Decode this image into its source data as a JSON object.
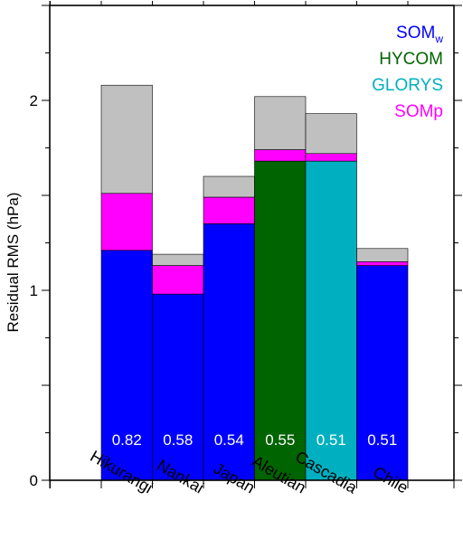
{
  "chart_data": {
    "type": "bar",
    "stacked": true,
    "title": "",
    "ylabel": "Residual RMS (hPa)",
    "xlabel": "",
    "ylim": [
      0,
      2.5
    ],
    "yticks": [
      0,
      1,
      2
    ],
    "grid": false,
    "legend_placement": "top-right",
    "categories": [
      "Hikurangi",
      "Nankai",
      "Japan",
      "Aleutian",
      "Cascadia",
      "Chile"
    ],
    "base_model": [
      "SOMw",
      "SOMw",
      "SOMw",
      "HYCOM",
      "GLORYS",
      "SOMw"
    ],
    "base_values": [
      1.21,
      0.98,
      1.35,
      1.68,
      1.68,
      1.13
    ],
    "somp_top": [
      1.51,
      1.13,
      1.49,
      1.74,
      1.72,
      1.15
    ],
    "total_values": [
      2.08,
      1.19,
      1.6,
      2.02,
      1.93,
      1.22
    ],
    "bar_labels": [
      "0.82",
      "0.58",
      "0.54",
      "0.55",
      "0.51",
      "0.51"
    ],
    "legend": [
      {
        "key": "SOMw",
        "main": "SOM",
        "sub": "w",
        "color": "#0000ff"
      },
      {
        "key": "HYCOM",
        "main": "HYCOM",
        "sub": "",
        "color": "#006400"
      },
      {
        "key": "GLORYS",
        "main": "GLORYS",
        "sub": "",
        "color": "#00b0c0"
      },
      {
        "key": "SOMp",
        "main": "SOMp",
        "sub": "",
        "color": "#ff00ff"
      }
    ],
    "colors": {
      "SOMw": "#0000ff",
      "HYCOM": "#006400",
      "GLORYS": "#00b0c0",
      "SOMp": "#ff00ff",
      "remainder": "#c0c0c0",
      "label_text": "#ffffff"
    }
  }
}
